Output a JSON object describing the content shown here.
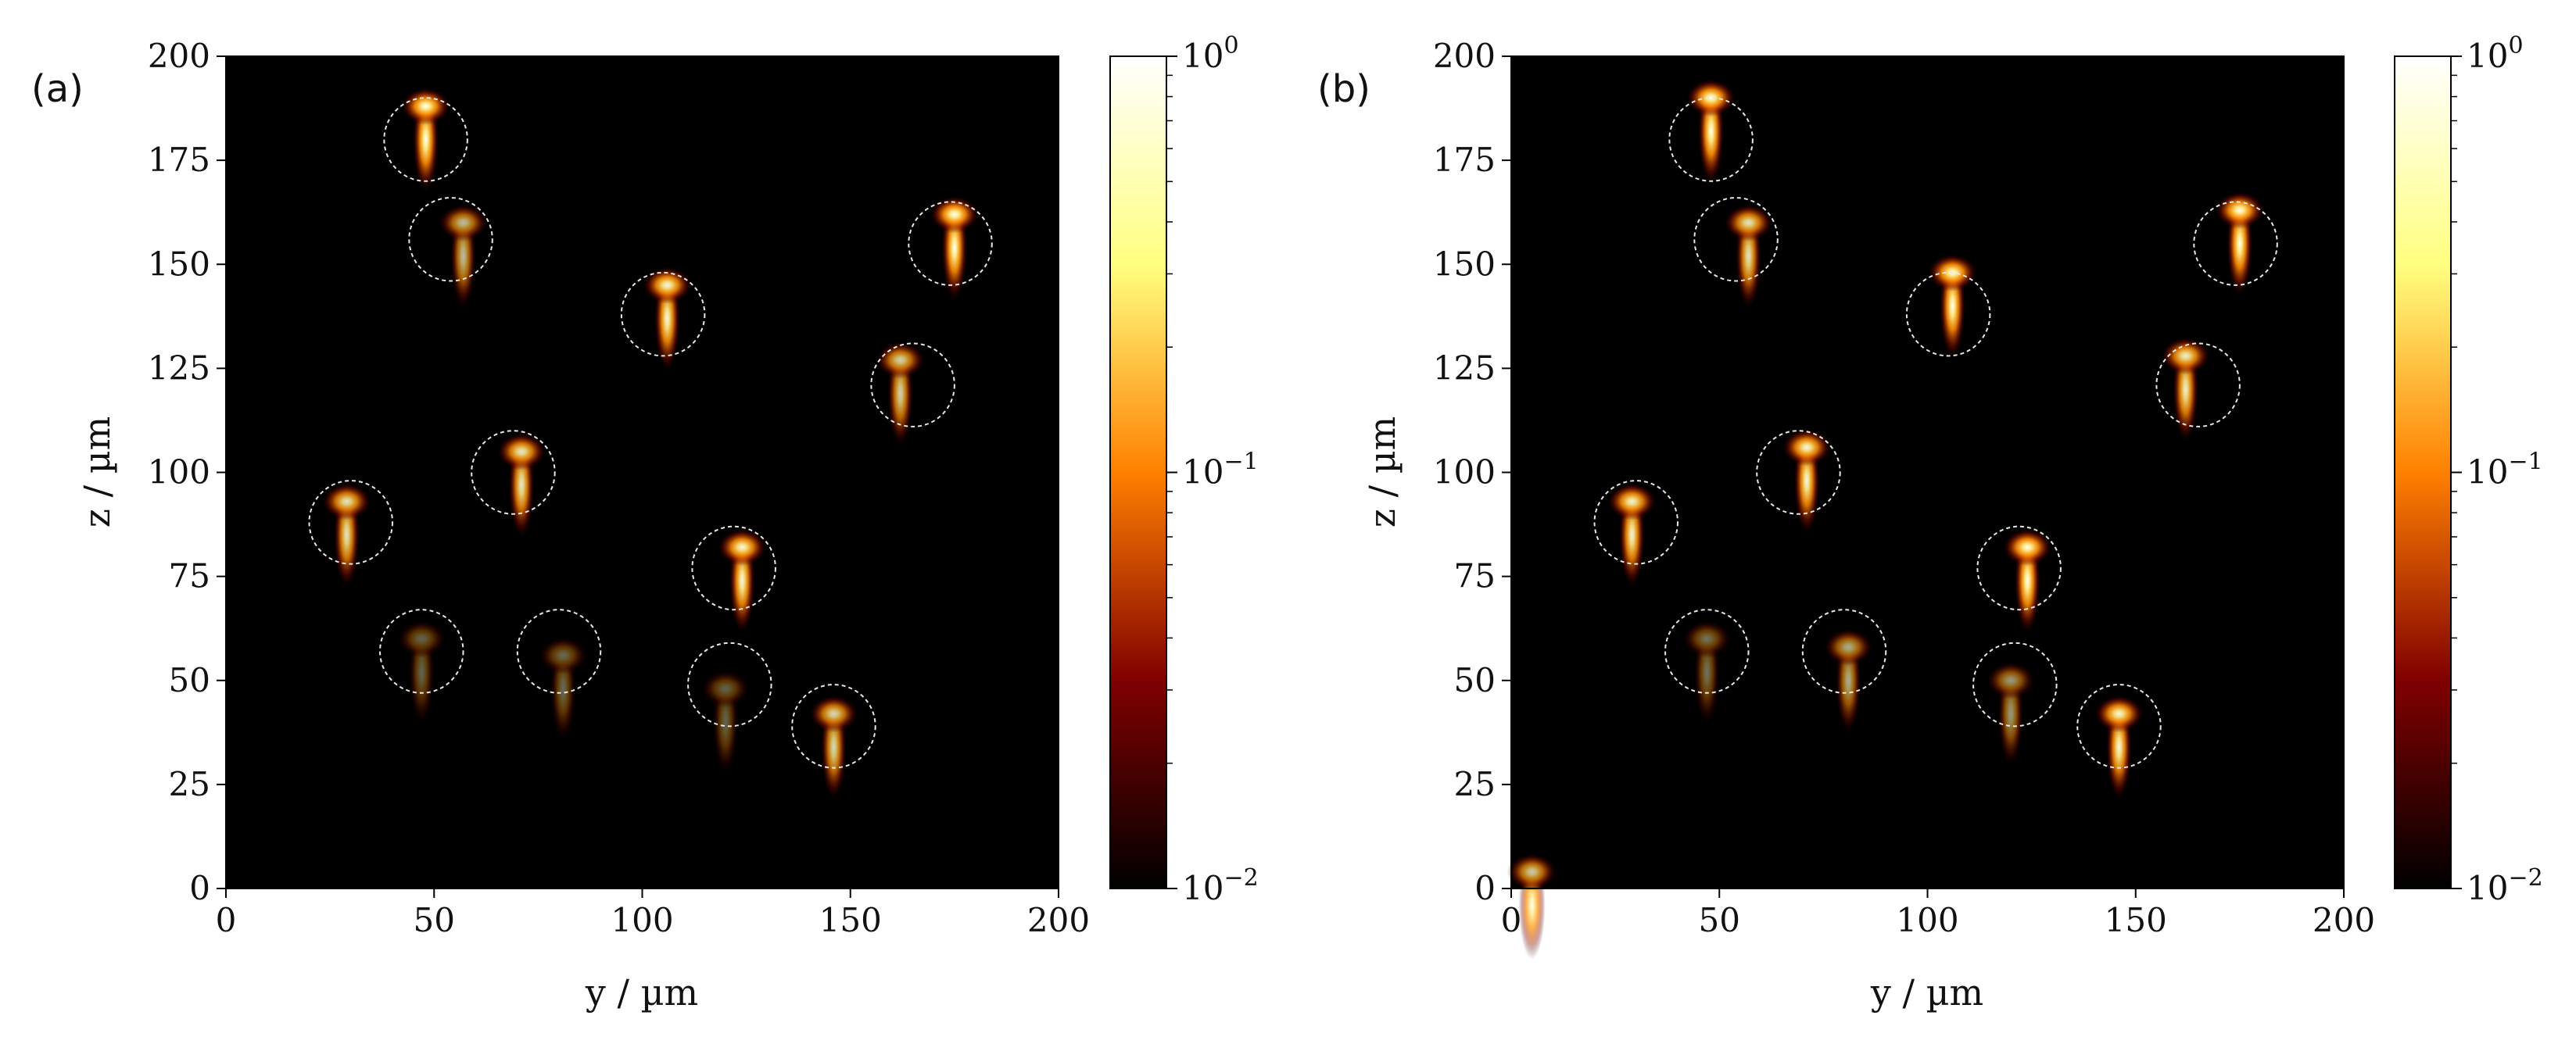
{
  "figure": {
    "panel_labels": [
      "(a)",
      "(b)"
    ]
  },
  "chart_data": [
    {
      "type": "heatmap",
      "panel": "(a)",
      "xlabel": "y / µm",
      "ylabel": "z / µm",
      "xlim": [
        0,
        200
      ],
      "ylim": [
        0,
        200
      ],
      "xticks": [
        "0",
        "50",
        "100",
        "150",
        "200"
      ],
      "yticks": [
        "0",
        "25",
        "50",
        "75",
        "100",
        "125",
        "150",
        "175",
        "200"
      ],
      "colorbar": {
        "scale": "log",
        "range": [
          0.01,
          1
        ],
        "ticks": [
          {
            "value": 1,
            "base": "10",
            "exp": "0"
          },
          {
            "value": 0.1,
            "base": "10",
            "exp": "−1"
          },
          {
            "value": 0.01,
            "base": "10",
            "exp": "−2"
          }
        ],
        "colormap": "afmhot"
      },
      "circles": [
        {
          "y": 48,
          "z": 180,
          "r": 10
        },
        {
          "y": 54,
          "z": 156,
          "r": 10
        },
        {
          "y": 105,
          "z": 138,
          "r": 10
        },
        {
          "y": 174,
          "z": 155,
          "r": 10
        },
        {
          "y": 165,
          "z": 121,
          "r": 10
        },
        {
          "y": 69,
          "z": 100,
          "r": 10
        },
        {
          "y": 30,
          "z": 88,
          "r": 10
        },
        {
          "y": 122,
          "z": 77,
          "r": 10
        },
        {
          "y": 47,
          "z": 57,
          "r": 10
        },
        {
          "y": 80,
          "z": 57,
          "r": 10
        },
        {
          "y": 121,
          "z": 49,
          "r": 10
        },
        {
          "y": 146,
          "z": 39,
          "r": 10
        }
      ],
      "intensity_spots": [
        {
          "y": 48,
          "z": 188,
          "intensity": 1.0
        },
        {
          "y": 57,
          "z": 160,
          "intensity": 0.4
        },
        {
          "y": 106,
          "z": 145,
          "intensity": 0.9
        },
        {
          "y": 175,
          "z": 162,
          "intensity": 1.0
        },
        {
          "y": 162,
          "z": 127,
          "intensity": 0.55
        },
        {
          "y": 71,
          "z": 105,
          "intensity": 0.75
        },
        {
          "y": 29,
          "z": 93,
          "intensity": 0.7
        },
        {
          "y": 124,
          "z": 82,
          "intensity": 0.9
        },
        {
          "y": 47,
          "z": 60,
          "intensity": 0.03
        },
        {
          "y": 81,
          "z": 56,
          "intensity": 0.04
        },
        {
          "y": 120,
          "z": 48,
          "intensity": 0.03
        },
        {
          "y": 146,
          "z": 42,
          "intensity": 0.6
        }
      ]
    },
    {
      "type": "heatmap",
      "panel": "(b)",
      "xlabel": "y / µm",
      "ylabel": "z / µm",
      "xlim": [
        0,
        200
      ],
      "ylim": [
        0,
        200
      ],
      "xticks": [
        "0",
        "50",
        "100",
        "150",
        "200"
      ],
      "yticks": [
        "0",
        "25",
        "50",
        "75",
        "100",
        "125",
        "150",
        "175",
        "200"
      ],
      "colorbar": {
        "scale": "log",
        "range": [
          0.01,
          1
        ],
        "ticks": [
          {
            "value": 1,
            "base": "10",
            "exp": "0"
          },
          {
            "value": 0.1,
            "base": "10",
            "exp": "−1"
          },
          {
            "value": 0.01,
            "base": "10",
            "exp": "−2"
          }
        ],
        "colormap": "afmhot"
      },
      "circles": [
        {
          "y": 48,
          "z": 180,
          "r": 10
        },
        {
          "y": 54,
          "z": 156,
          "r": 10
        },
        {
          "y": 105,
          "z": 138,
          "r": 10
        },
        {
          "y": 174,
          "z": 155,
          "r": 10
        },
        {
          "y": 165,
          "z": 121,
          "r": 10
        },
        {
          "y": 69,
          "z": 100,
          "r": 10
        },
        {
          "y": 30,
          "z": 88,
          "r": 10
        },
        {
          "y": 122,
          "z": 77,
          "r": 10
        },
        {
          "y": 47,
          "z": 57,
          "r": 10
        },
        {
          "y": 80,
          "z": 57,
          "r": 10
        },
        {
          "y": 121,
          "z": 49,
          "r": 10
        },
        {
          "y": 146,
          "z": 39,
          "r": 10
        }
      ],
      "intensity_spots": [
        {
          "y": 48,
          "z": 190,
          "intensity": 1.0
        },
        {
          "y": 57,
          "z": 160,
          "intensity": 0.7
        },
        {
          "y": 106,
          "z": 148,
          "intensity": 1.0
        },
        {
          "y": 175,
          "z": 163,
          "intensity": 1.0
        },
        {
          "y": 162,
          "z": 128,
          "intensity": 0.8
        },
        {
          "y": 71,
          "z": 106,
          "intensity": 0.9
        },
        {
          "y": 29,
          "z": 93,
          "intensity": 0.85
        },
        {
          "y": 124,
          "z": 82,
          "intensity": 1.0
        },
        {
          "y": 47,
          "z": 60,
          "intensity": 0.06
        },
        {
          "y": 81,
          "z": 58,
          "intensity": 0.3
        },
        {
          "y": 120,
          "z": 50,
          "intensity": 0.2
        },
        {
          "y": 146,
          "z": 42,
          "intensity": 0.9
        },
        {
          "y": 5,
          "z": 4,
          "intensity": 0.5
        }
      ]
    }
  ]
}
